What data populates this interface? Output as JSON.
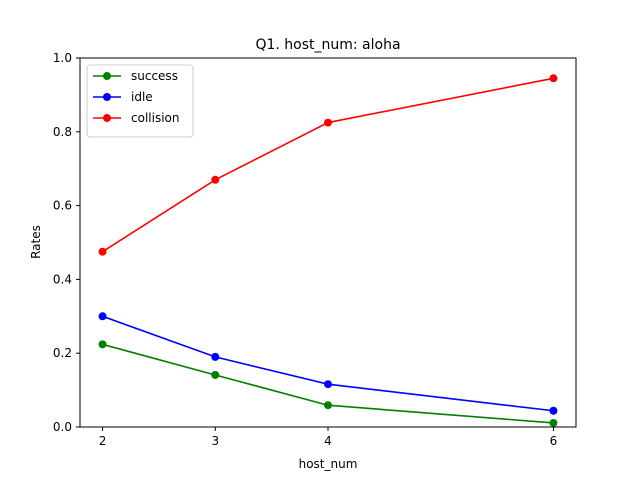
{
  "chart_data": {
    "type": "line",
    "title": "Q1. host_num: aloha",
    "xlabel": "host_num",
    "ylabel": "Rates",
    "x": [
      2,
      3,
      4,
      6
    ],
    "xticks": [
      "2",
      "3",
      "4",
      "6"
    ],
    "yticks": [
      "0.0",
      "0.2",
      "0.4",
      "0.6",
      "0.8",
      "1.0"
    ],
    "ylim": [
      0,
      1.0
    ],
    "xlim": [
      1.8,
      6.2
    ],
    "grid": false,
    "legend_position": "upper-left",
    "series": [
      {
        "name": "success",
        "color": "#008000",
        "values": [
          0.224,
          0.141,
          0.059,
          0.011
        ]
      },
      {
        "name": "idle",
        "color": "#0000ff",
        "values": [
          0.3,
          0.19,
          0.116,
          0.044
        ]
      },
      {
        "name": "collision",
        "color": "#ff0000",
        "values": [
          0.475,
          0.67,
          0.825,
          0.945
        ]
      }
    ]
  }
}
